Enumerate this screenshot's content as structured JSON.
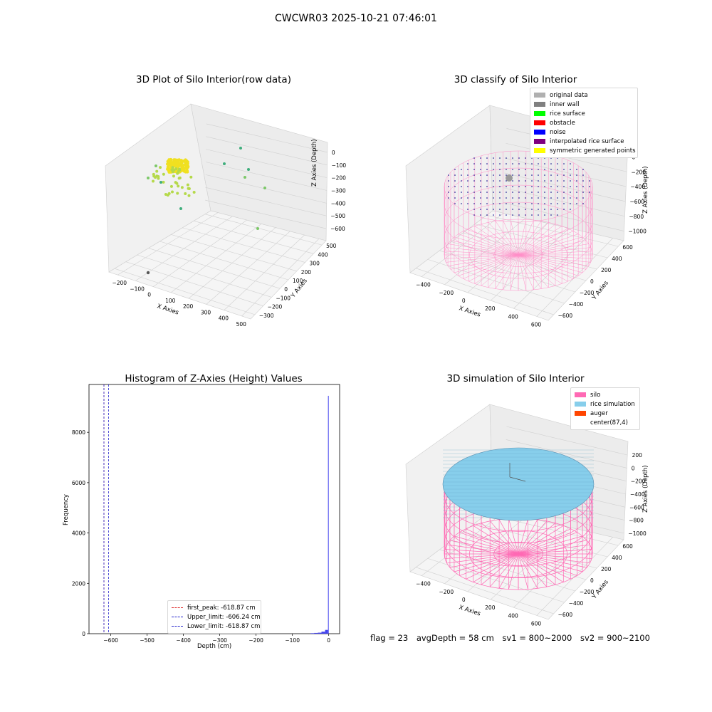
{
  "figure_title": "CWCWR03 2025-10-21 07:46:01",
  "chart_data": [
    {
      "type": "scatter",
      "title": "3D Plot of Silo Interior(row data)",
      "xlabel": "X Axies",
      "ylabel": "Y Axies",
      "zlabel": "Z Axies (Depth)",
      "x_ticks": [
        "−200",
        "−100",
        "0",
        "100",
        "200",
        "300",
        "400",
        "500"
      ],
      "y_ticks": [
        "−300",
        "−200",
        "−100",
        "0",
        "100",
        "200",
        "300",
        "400",
        "500"
      ],
      "z_ticks": [
        "0",
        "−100",
        "−200",
        "−300",
        "−400",
        "−500",
        "−600"
      ],
      "points_description_colors": [
        "#f0e020",
        "#b5d94a",
        "#7cc868",
        "#3fae7c",
        "#555555"
      ],
      "grid": true
    },
    {
      "type": "scatter",
      "title": "3D classify of Silo Interior",
      "xlabel": "X Axies",
      "ylabel": "Y Axies",
      "zlabel": "Z Axies (Depth)",
      "x_ticks": [
        "−400",
        "−200",
        "0",
        "200",
        "400",
        "600"
      ],
      "y_ticks": [
        "−600",
        "−400",
        "−200",
        "0",
        "200",
        "400",
        "600"
      ],
      "z_ticks": [
        "0",
        "−200",
        "−400",
        "−600",
        "−800",
        "−1000"
      ],
      "legend": [
        {
          "label": "original data",
          "color": "#b0b0b0"
        },
        {
          "label": "inner wall",
          "color": "#808080"
        },
        {
          "label": "rice surface",
          "color": "#00ff00"
        },
        {
          "label": "obstacle",
          "color": "#ff0000"
        },
        {
          "label": "noise",
          "color": "#0000ff"
        },
        {
          "label": "interpolated rice surface",
          "color": "#800080"
        },
        {
          "label": "symmetric generated points",
          "color": "#ffff00"
        }
      ],
      "legend_position": "top-right",
      "grid": true
    },
    {
      "type": "bar",
      "title": "Histogram of Z-Axies (Height) Values",
      "xlabel": "Depth (cm)",
      "ylabel": "Frequency",
      "xlim": [
        -660,
        30
      ],
      "ylim": [
        0,
        9900
      ],
      "x_ticks": [
        -600,
        -500,
        -400,
        -300,
        -200,
        -100,
        0
      ],
      "x_tick_labels": [
        "−600",
        "−500",
        "−400",
        "−300",
        "−200",
        "−100",
        "0"
      ],
      "y_ticks": [
        0,
        2000,
        4000,
        6000,
        8000
      ],
      "y_tick_labels": [
        "0",
        "2000",
        "4000",
        "6000",
        "8000"
      ],
      "bins": [
        {
          "x0": -50,
          "x1": -40,
          "count": 20
        },
        {
          "x0": -40,
          "x1": -30,
          "count": 30
        },
        {
          "x0": -30,
          "x1": -20,
          "count": 40
        },
        {
          "x0": -20,
          "x1": -10,
          "count": 80
        },
        {
          "x0": -10,
          "x1": -2,
          "count": 150
        },
        {
          "x0": -2,
          "x1": 0,
          "count": 9450
        }
      ],
      "bar_color": "#4444ee",
      "vlines": [
        {
          "x": -618.87,
          "label": "first_peak: -618.87 cm",
          "color": "#e03030"
        },
        {
          "x": -606.24,
          "label": "Upper_limit: -606.24 cm",
          "color": "#2222cc"
        },
        {
          "x": -618.87,
          "label": "Lower_limit: -618.87 cm",
          "color": "#2222cc"
        }
      ],
      "legend_position": "lower-center"
    },
    {
      "type": "surface",
      "title": "3D simulation of Silo Interior",
      "xlabel": "X Axies",
      "ylabel": "Y Axies",
      "zlabel": "Z Axies (Depth)",
      "x_ticks": [
        "−400",
        "−200",
        "0",
        "200",
        "400",
        "600"
      ],
      "y_ticks": [
        "−600",
        "−400",
        "−200",
        "0",
        "200",
        "400",
        "600"
      ],
      "z_ticks": [
        "200",
        "0",
        "−200",
        "−400",
        "−600",
        "−800",
        "−1000"
      ],
      "legend": [
        {
          "label": "silo",
          "color": "#ff69b4"
        },
        {
          "label": "rice simulation",
          "color": "#87ceeb"
        },
        {
          "label": "auger",
          "color": "#ff4500"
        },
        {
          "label": "center(87,4)",
          "color": "#ffffff"
        }
      ],
      "legend_position": "top-right",
      "grid": true
    }
  ],
  "stats": {
    "flag": "flag = 23",
    "avg_depth": "avgDepth = 58 cm",
    "sv1": "sv1 = 800~2000",
    "sv2": "sv2 = 900~2100"
  }
}
